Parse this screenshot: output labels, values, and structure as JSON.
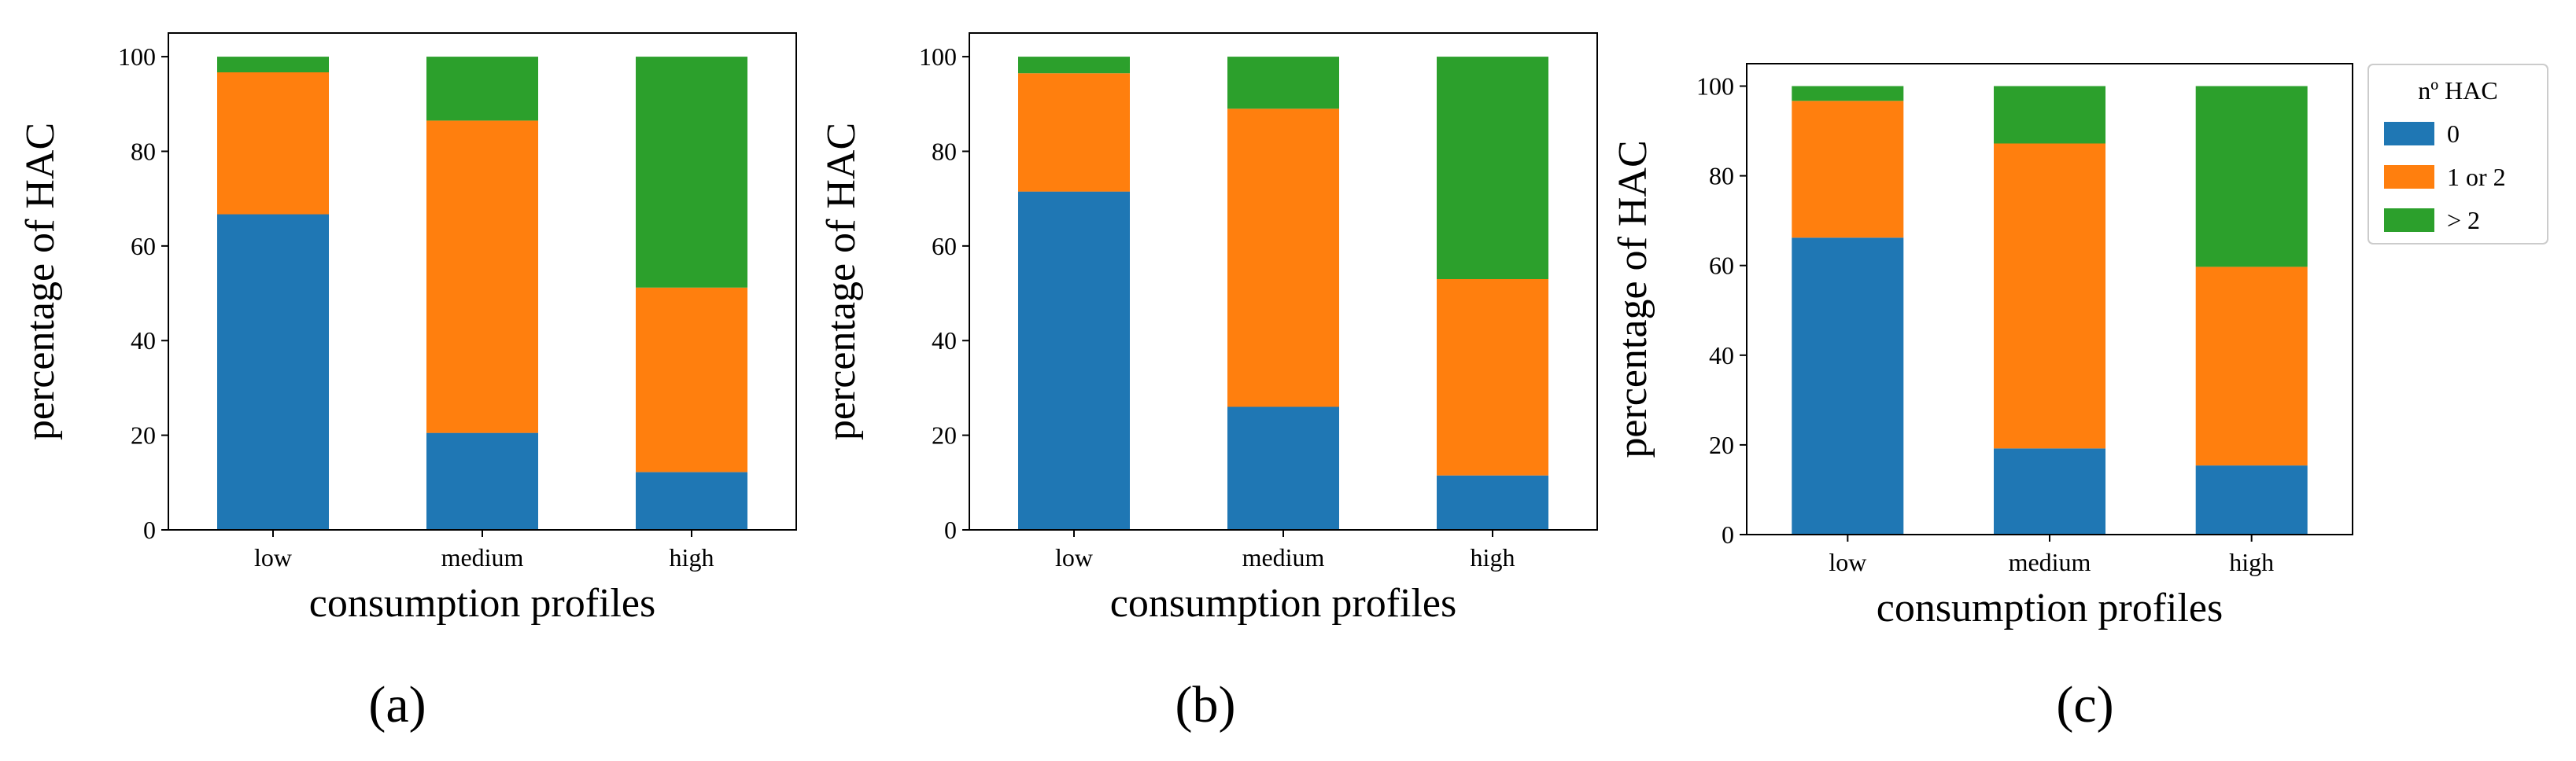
{
  "colors": {
    "0": "#1f77b4",
    "1 or 2": "#ff7f0e",
    "> 2": "#2ca02c"
  },
  "legend": {
    "title": "nº HAC",
    "entries": [
      "0",
      "1 or 2",
      "> 2"
    ]
  },
  "chart_data": [
    {
      "type": "bar",
      "stacked": true,
      "panel_label": "(a)",
      "categories": [
        "low",
        "medium",
        "high"
      ],
      "series": [
        {
          "name": "0",
          "values": [
            66.7,
            20.5,
            12.2
          ]
        },
        {
          "name": "1 or 2",
          "values": [
            30.0,
            66.0,
            39.0
          ]
        },
        {
          "name": "> 2",
          "values": [
            3.3,
            13.5,
            48.8
          ]
        }
      ],
      "xlabel": "consumption profiles",
      "ylabel": "percentage of HAC",
      "ylim": [
        0,
        100
      ],
      "yticks": [
        0,
        20,
        40,
        60,
        80,
        100
      ]
    },
    {
      "type": "bar",
      "stacked": true,
      "panel_label": "(b)",
      "categories": [
        "low",
        "medium",
        "high"
      ],
      "series": [
        {
          "name": "0",
          "values": [
            71.5,
            26.0,
            11.5
          ]
        },
        {
          "name": "1 or 2",
          "values": [
            25.0,
            63.0,
            41.5
          ]
        },
        {
          "name": "> 2",
          "values": [
            3.5,
            11.0,
            47.0
          ]
        }
      ],
      "xlabel": "consumption profiles",
      "ylabel": "percentage of HAC",
      "ylim": [
        0,
        100
      ],
      "yticks": [
        0,
        20,
        40,
        60,
        80,
        100
      ]
    },
    {
      "type": "bar",
      "stacked": true,
      "panel_label": "(c)",
      "categories": [
        "low",
        "medium",
        "high"
      ],
      "series": [
        {
          "name": "0",
          "values": [
            66.2,
            19.2,
            15.4
          ]
        },
        {
          "name": "1 or 2",
          "values": [
            30.5,
            68.0,
            44.3
          ]
        },
        {
          "name": "> 2",
          "values": [
            3.3,
            12.8,
            40.3
          ]
        }
      ],
      "xlabel": "consumption profiles",
      "ylabel": "percentage of HAC",
      "ylim": [
        0,
        100
      ],
      "yticks": [
        0,
        20,
        40,
        60,
        80,
        100
      ],
      "legend": "right"
    }
  ]
}
